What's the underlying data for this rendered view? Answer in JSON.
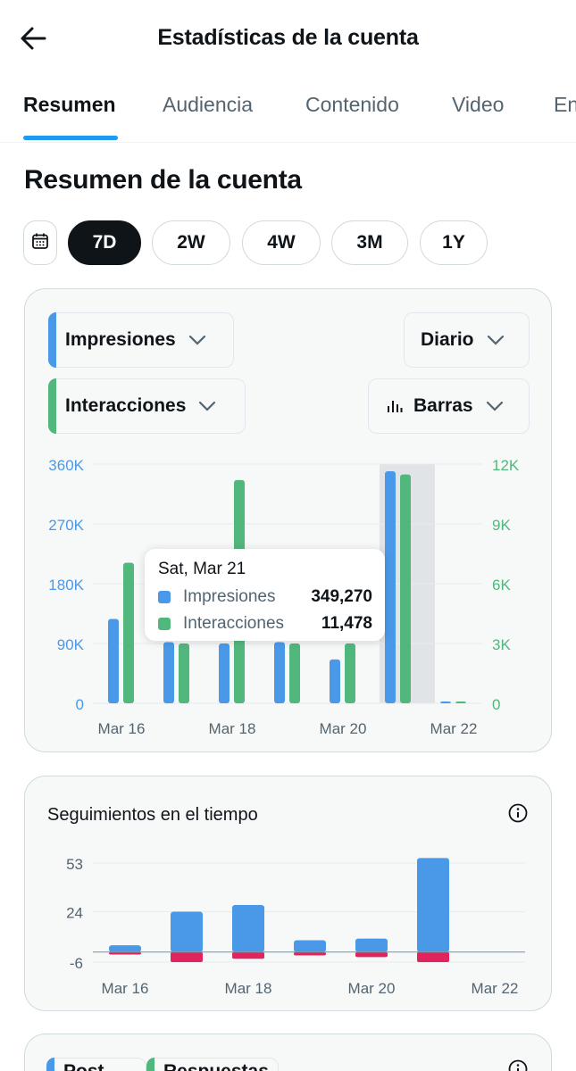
{
  "header": {
    "title": "Estadísticas de la cuenta"
  },
  "tabs": [
    {
      "label": "Resumen",
      "active": true
    },
    {
      "label": "Audiencia"
    },
    {
      "label": "Contenido"
    },
    {
      "label": "Video"
    },
    {
      "label": "En"
    }
  ],
  "section_title": "Resumen de la cuenta",
  "ranges": [
    {
      "label": "7D",
      "active": true
    },
    {
      "label": "2W"
    },
    {
      "label": "4W"
    },
    {
      "label": "3M"
    },
    {
      "label": "1Y"
    }
  ],
  "selectors": {
    "metric1": {
      "label": "Impresiones",
      "color": "#4a99e9"
    },
    "metric2": {
      "label": "Interacciones",
      "color": "#52b77c"
    },
    "granularity": "Diario",
    "chart_kind": "Barras"
  },
  "tooltip": {
    "date": "Sat, Mar 21",
    "rows": [
      {
        "name": "Impresiones",
        "value": "349,270",
        "color": "#4a99e9"
      },
      {
        "name": "Interacciones",
        "value": "11,478",
        "color": "#52b77c"
      }
    ]
  },
  "followers_card": {
    "title": "Seguimientos en el tiempo"
  },
  "bottom_card": {
    "legend": [
      "Post",
      "Respuestas"
    ]
  },
  "colors": {
    "blue": "#4a99e9",
    "green": "#52b77c",
    "red": "#e0245e",
    "axis_blue": "#4a99e9",
    "axis_green": "#52b77c"
  },
  "chart_data": [
    {
      "type": "bar",
      "categories": [
        "Mar 16",
        "Mar 17",
        "Mar 18",
        "Mar 19",
        "Mar 20",
        "Mar 21",
        "Mar 22"
      ],
      "x_tick_labels": [
        "Mar 16",
        "Mar 18",
        "Mar 20",
        "Mar 22"
      ],
      "series": [
        {
          "name": "Impresiones",
          "axis": "left",
          "values": [
            127000,
            92000,
            90000,
            92000,
            66000,
            349270,
            1500
          ]
        },
        {
          "name": "Interacciones",
          "axis": "right",
          "values": [
            7050,
            3000,
            11200,
            3000,
            3000,
            11478,
            50
          ]
        }
      ],
      "left_axis": {
        "ticks": [
          "360K",
          "270K",
          "180K",
          "90K",
          "0"
        ],
        "ylim": [
          0,
          360000
        ]
      },
      "right_axis": {
        "ticks": [
          "12K",
          "9K",
          "6K",
          "3K",
          "0"
        ],
        "ylim": [
          0,
          12000
        ]
      },
      "highlighted_category": "Mar 21",
      "grid": true
    },
    {
      "type": "bar",
      "categories": [
        "Mar 16",
        "Mar 17",
        "Mar 18",
        "Mar 19",
        "Mar 20",
        "Mar 21"
      ],
      "x_tick_labels": [
        "Mar 16",
        "Mar 18",
        "Mar 20",
        "Mar 22"
      ],
      "series": [
        {
          "values": [
            4,
            24,
            28,
            7,
            8,
            56
          ]
        },
        {
          "values": [
            -1.5,
            -6,
            -4,
            -2,
            -3,
            -6
          ]
        }
      ],
      "y_ticks": [
        "53",
        "24",
        "-6"
      ],
      "ylim": [
        -6,
        53
      ],
      "grid": true
    }
  ]
}
